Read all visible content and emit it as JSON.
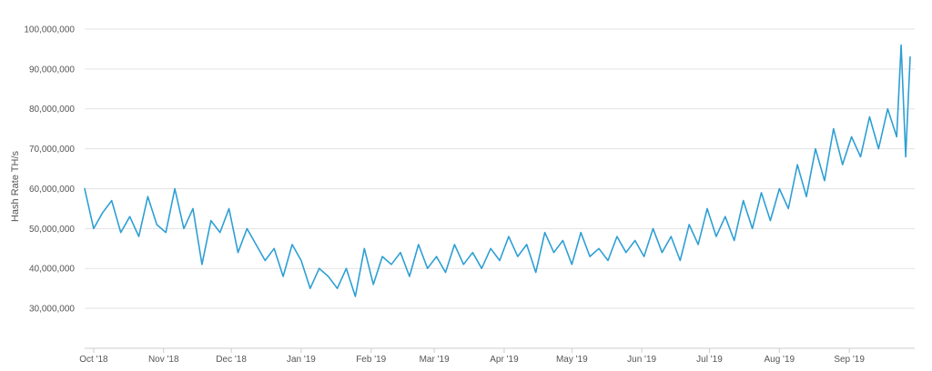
{
  "chart_data": {
    "type": "line",
    "ylabel": "Hash Rate TH/s",
    "ylim": [
      20000000,
      105000000
    ],
    "y_ticks": [
      {
        "value": 30000000,
        "label": "30,000,000"
      },
      {
        "value": 40000000,
        "label": "40,000,000"
      },
      {
        "value": 50000000,
        "label": "50,000,000"
      },
      {
        "value": 60000000,
        "label": "60,000,000"
      },
      {
        "value": 70000000,
        "label": "70,000,000"
      },
      {
        "value": 80000000,
        "label": "80,000,000"
      },
      {
        "value": 90000000,
        "label": "90,000,000"
      },
      {
        "value": 100000000,
        "label": "100,000,000"
      }
    ],
    "x_range": [
      "2018-09-27",
      "2019-09-30"
    ],
    "x_ticks": [
      {
        "date": "2018-10-01",
        "label": "Oct '18"
      },
      {
        "date": "2018-11-01",
        "label": "Nov '18"
      },
      {
        "date": "2018-12-01",
        "label": "Dec '18"
      },
      {
        "date": "2019-01-01",
        "label": "Jan '19"
      },
      {
        "date": "2019-02-01",
        "label": "Feb '19"
      },
      {
        "date": "2019-03-01",
        "label": "Mar '19"
      },
      {
        "date": "2019-04-01",
        "label": "Apr '19"
      },
      {
        "date": "2019-05-01",
        "label": "May '19"
      },
      {
        "date": "2019-06-01",
        "label": "Jun '19"
      },
      {
        "date": "2019-07-01",
        "label": "Jul '19"
      },
      {
        "date": "2019-08-01",
        "label": "Aug '19"
      },
      {
        "date": "2019-09-01",
        "label": "Sep '19"
      }
    ],
    "grid": true,
    "legend": "none",
    "line_color": "#2e9fd4",
    "series": [
      {
        "x": [
          "2018-09-27",
          "2018-10-01",
          "2018-10-05",
          "2018-10-09",
          "2018-10-13",
          "2018-10-17",
          "2018-10-21",
          "2018-10-25",
          "2018-10-29",
          "2018-11-02",
          "2018-11-06",
          "2018-11-10",
          "2018-11-14",
          "2018-11-18",
          "2018-11-22",
          "2018-11-26",
          "2018-11-30",
          "2018-12-04",
          "2018-12-08",
          "2018-12-12",
          "2018-12-16",
          "2018-12-20",
          "2018-12-24",
          "2018-12-28",
          "2019-01-01",
          "2019-01-05",
          "2019-01-09",
          "2019-01-13",
          "2019-01-17",
          "2019-01-21",
          "2019-01-25",
          "2019-01-29",
          "2019-02-02",
          "2019-02-06",
          "2019-02-10",
          "2019-02-14",
          "2019-02-18",
          "2019-02-22",
          "2019-02-26",
          "2019-03-02",
          "2019-03-06",
          "2019-03-10",
          "2019-03-14",
          "2019-03-18",
          "2019-03-22",
          "2019-03-26",
          "2019-03-30",
          "2019-04-03",
          "2019-04-07",
          "2019-04-11",
          "2019-04-15",
          "2019-04-19",
          "2019-04-23",
          "2019-04-27",
          "2019-05-01",
          "2019-05-05",
          "2019-05-09",
          "2019-05-13",
          "2019-05-17",
          "2019-05-21",
          "2019-05-25",
          "2019-05-29",
          "2019-06-02",
          "2019-06-06",
          "2019-06-10",
          "2019-06-14",
          "2019-06-18",
          "2019-06-22",
          "2019-06-26",
          "2019-06-30",
          "2019-07-04",
          "2019-07-08",
          "2019-07-12",
          "2019-07-16",
          "2019-07-20",
          "2019-07-24",
          "2019-07-28",
          "2019-08-01",
          "2019-08-05",
          "2019-08-09",
          "2019-08-13",
          "2019-08-17",
          "2019-08-21",
          "2019-08-25",
          "2019-08-29",
          "2019-09-02",
          "2019-09-06",
          "2019-09-10",
          "2019-09-14",
          "2019-09-18",
          "2019-09-22",
          "2019-09-24",
          "2019-09-26",
          "2019-09-28"
        ],
        "y": [
          60000000,
          50000000,
          54000000,
          57000000,
          49000000,
          53000000,
          48000000,
          58000000,
          51000000,
          49000000,
          60000000,
          50000000,
          55000000,
          41000000,
          52000000,
          49000000,
          55000000,
          44000000,
          50000000,
          46000000,
          42000000,
          45000000,
          38000000,
          46000000,
          42000000,
          35000000,
          40000000,
          38000000,
          35000000,
          40000000,
          33000000,
          45000000,
          36000000,
          43000000,
          41000000,
          44000000,
          38000000,
          46000000,
          40000000,
          43000000,
          39000000,
          46000000,
          41000000,
          44000000,
          40000000,
          45000000,
          42000000,
          48000000,
          43000000,
          46000000,
          39000000,
          49000000,
          44000000,
          47000000,
          41000000,
          49000000,
          43000000,
          45000000,
          42000000,
          48000000,
          44000000,
          47000000,
          43000000,
          50000000,
          44000000,
          48000000,
          42000000,
          51000000,
          46000000,
          55000000,
          48000000,
          53000000,
          47000000,
          57000000,
          50000000,
          59000000,
          52000000,
          60000000,
          55000000,
          66000000,
          58000000,
          70000000,
          62000000,
          75000000,
          66000000,
          73000000,
          68000000,
          78000000,
          70000000,
          80000000,
          73000000,
          96000000,
          68000000,
          93000000
        ],
        "note_points": "sampled approximation"
      }
    ]
  }
}
